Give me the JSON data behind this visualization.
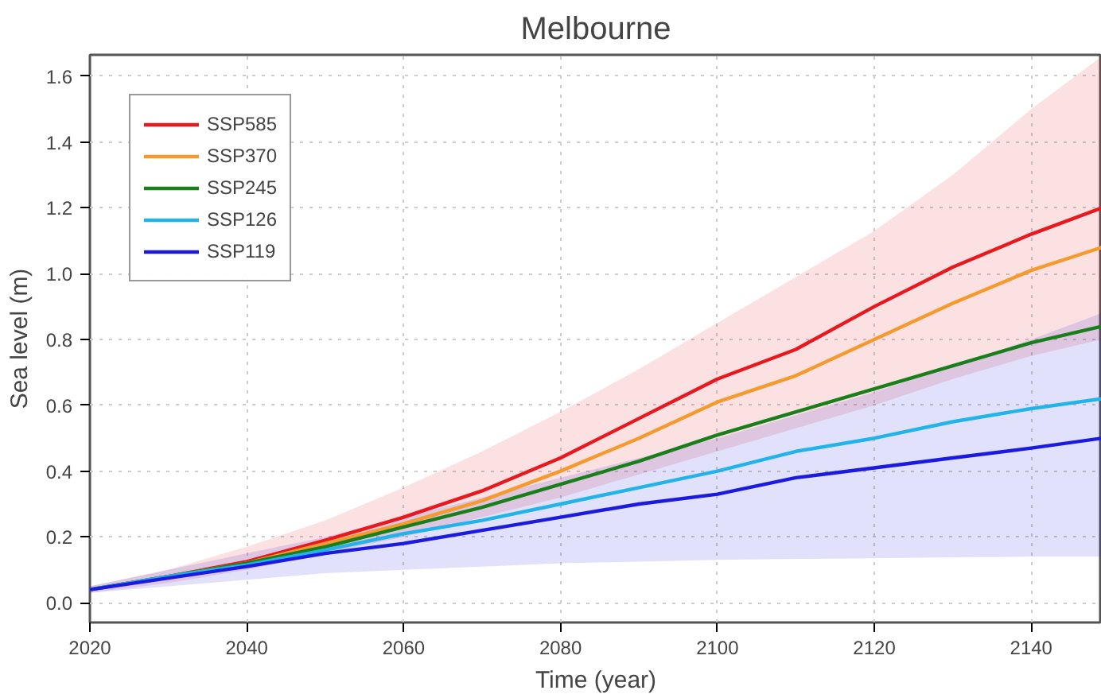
{
  "chart_data": {
    "type": "line",
    "title": "Melbourne",
    "xlabel": "Time (year)",
    "ylabel": "Sea level (m)",
    "x": [
      2020,
      2030,
      2040,
      2050,
      2060,
      2070,
      2080,
      2090,
      2100,
      2110,
      2120,
      2130,
      2140,
      2149
    ],
    "series": [
      {
        "name": "SSP585",
        "color": "#e8191e",
        "values": [
          0.04,
          0.08,
          0.125,
          0.19,
          0.26,
          0.34,
          0.44,
          0.56,
          0.68,
          0.77,
          0.9,
          1.02,
          1.12,
          1.2
        ],
        "lower": [
          0.03,
          0.06,
          0.1,
          0.15,
          0.2,
          0.26,
          0.32,
          0.39,
          0.46,
          0.53,
          0.6,
          0.68,
          0.75,
          0.8
        ],
        "upper": [
          0.05,
          0.1,
          0.17,
          0.25,
          0.35,
          0.46,
          0.58,
          0.71,
          0.85,
          0.99,
          1.13,
          1.3,
          1.5,
          1.66
        ]
      },
      {
        "name": "SSP370",
        "color": "#f59a2f",
        "values": [
          0.04,
          0.08,
          0.12,
          0.18,
          0.24,
          0.31,
          0.4,
          0.5,
          0.61,
          0.69,
          0.8,
          0.91,
          1.01,
          1.08
        ]
      },
      {
        "name": "SSP245",
        "color": "#1a7f1a",
        "values": [
          0.04,
          0.08,
          0.12,
          0.17,
          0.23,
          0.29,
          0.36,
          0.43,
          0.51,
          0.58,
          0.65,
          0.72,
          0.79,
          0.84
        ]
      },
      {
        "name": "SSP126",
        "color": "#22b4e8",
        "values": [
          0.04,
          0.08,
          0.115,
          0.16,
          0.21,
          0.25,
          0.3,
          0.35,
          0.4,
          0.46,
          0.5,
          0.55,
          0.59,
          0.62
        ]
      },
      {
        "name": "SSP119",
        "color": "#1a1ae0",
        "values": [
          0.04,
          0.075,
          0.11,
          0.15,
          0.18,
          0.22,
          0.26,
          0.3,
          0.33,
          0.38,
          0.41,
          0.44,
          0.47,
          0.5
        ],
        "lower": [
          0.03,
          0.05,
          0.07,
          0.09,
          0.1,
          0.11,
          0.12,
          0.125,
          0.13,
          0.133,
          0.135,
          0.138,
          0.14,
          0.14
        ],
        "upper": [
          0.05,
          0.1,
          0.15,
          0.2,
          0.26,
          0.32,
          0.38,
          0.44,
          0.5,
          0.57,
          0.64,
          0.72,
          0.8,
          0.88
        ]
      }
    ],
    "xlim": [
      2020,
      2149
    ],
    "ylim": [
      -0.06,
      1.665
    ],
    "xticks": [
      2020,
      2040,
      2060,
      2080,
      2100,
      2120,
      2140
    ],
    "yticks": [
      {
        "value": 0,
        "label": "0.0"
      },
      0.2,
      0.4,
      0.6,
      0.8,
      {
        "value": 1,
        "label": "1.0"
      },
      1.2,
      1.4,
      1.6
    ],
    "grid": true,
    "legend": "top left",
    "line_style": "solid"
  }
}
